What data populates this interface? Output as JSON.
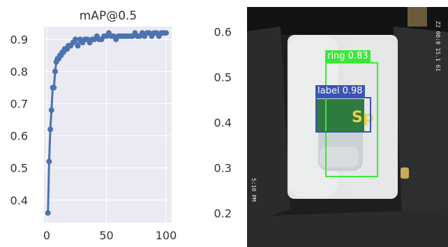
{
  "chart_data": {
    "type": "line",
    "title": "mAP@0.5",
    "xlim": [
      0,
      100
    ],
    "ylim": [
      0.33,
      0.94
    ],
    "xticks": [
      0,
      50,
      100
    ],
    "yticks": [
      0.4,
      0.5,
      0.6,
      0.7,
      0.8,
      0.9
    ],
    "grid": true,
    "series": [
      {
        "color": "#4c72b0",
        "x": [
          1,
          2,
          3,
          4,
          5,
          6,
          7,
          8,
          9,
          10,
          11,
          12,
          13,
          14,
          15,
          16,
          17,
          18,
          19,
          20,
          22,
          24,
          26,
          28,
          30,
          32,
          34,
          36,
          38,
          40,
          42,
          44,
          46,
          48,
          50,
          52,
          54,
          56,
          58,
          60,
          62,
          64,
          66,
          68,
          70,
          72,
          74,
          76,
          78,
          80,
          82,
          84,
          86,
          88,
          90,
          92,
          94,
          96,
          98,
          100
        ],
        "y": [
          0.36,
          0.52,
          0.62,
          0.68,
          0.75,
          0.75,
          0.8,
          0.83,
          0.84,
          0.84,
          0.85,
          0.85,
          0.86,
          0.86,
          0.87,
          0.87,
          0.87,
          0.88,
          0.88,
          0.88,
          0.89,
          0.9,
          0.88,
          0.9,
          0.89,
          0.9,
          0.9,
          0.89,
          0.9,
          0.9,
          0.91,
          0.9,
          0.9,
          0.91,
          0.91,
          0.92,
          0.91,
          0.91,
          0.9,
          0.91,
          0.91,
          0.91,
          0.91,
          0.91,
          0.91,
          0.91,
          0.92,
          0.91,
          0.91,
          0.92,
          0.91,
          0.92,
          0.92,
          0.91,
          0.92,
          0.92,
          0.91,
          0.92,
          0.92,
          0.92
        ]
      }
    ],
    "right_axis": {
      "ticks": [
        0.2,
        0.3,
        0.4,
        0.5,
        0.6
      ],
      "ylim": [
        0.125,
        0.655
      ]
    }
  },
  "detection_image": {
    "detections": [
      {
        "label": "ring 0.83",
        "color": "#3ee63a"
      },
      {
        "label": "label 0.98",
        "color": "#3a55b4"
      }
    ],
    "overlay_text": "5:10 PM",
    "side_text": "Z2 00:0 15.1 61"
  }
}
